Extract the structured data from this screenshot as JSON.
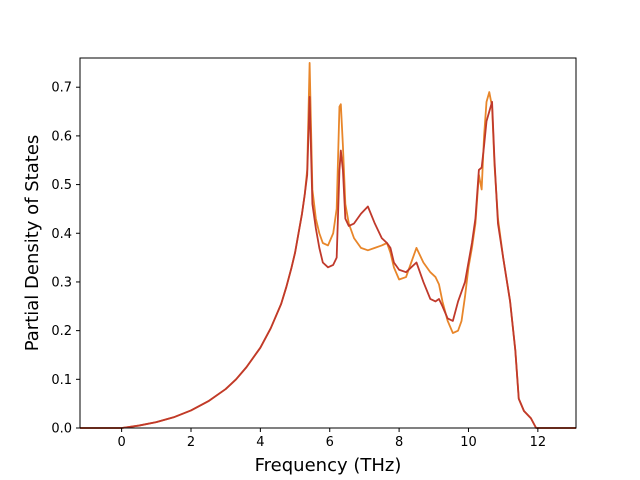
{
  "chart_data": {
    "type": "line",
    "xlabel": "Frequency (THz)",
    "ylabel": "Partial Density of States",
    "xlim": [
      -1.2,
      13.1
    ],
    "ylim": [
      0.0,
      0.76
    ],
    "xticks": [
      "0",
      "2",
      "4",
      "6",
      "8",
      "10",
      "12"
    ],
    "yticks": [
      "0.0",
      "0.1",
      "0.2",
      "0.3",
      "0.4",
      "0.5",
      "0.6",
      "0.7"
    ],
    "grid": false,
    "series": [
      {
        "color": "#e8862a",
        "x": [
          -1.2,
          -0.4,
          0.0,
          0.5,
          1.0,
          1.5,
          2.0,
          2.5,
          3.0,
          3.3,
          3.6,
          4.0,
          4.3,
          4.6,
          4.75,
          4.9,
          5.0,
          5.1,
          5.2,
          5.28,
          5.35,
          5.42,
          5.5,
          5.6,
          5.7,
          5.8,
          5.95,
          6.1,
          6.2,
          6.28,
          6.32,
          6.38,
          6.45,
          6.55,
          6.7,
          6.9,
          7.1,
          7.3,
          7.5,
          7.65,
          7.75,
          7.85,
          8.0,
          8.2,
          8.35,
          8.5,
          8.7,
          8.9,
          9.05,
          9.15,
          9.25,
          9.4,
          9.55,
          9.7,
          9.8,
          9.9,
          10.0,
          10.1,
          10.2,
          10.3,
          10.38,
          10.45,
          10.52,
          10.6,
          10.68,
          10.75,
          10.85,
          11.0,
          11.2,
          11.35,
          11.45,
          11.6,
          11.8,
          11.95,
          12.1,
          12.5,
          13.1
        ],
        "y": [
          0.0,
          0.0,
          0.0,
          0.005,
          0.012,
          0.022,
          0.036,
          0.055,
          0.08,
          0.1,
          0.125,
          0.165,
          0.205,
          0.255,
          0.29,
          0.33,
          0.36,
          0.4,
          0.44,
          0.48,
          0.53,
          0.75,
          0.49,
          0.43,
          0.4,
          0.38,
          0.375,
          0.4,
          0.45,
          0.66,
          0.665,
          0.58,
          0.46,
          0.42,
          0.39,
          0.37,
          0.365,
          0.37,
          0.375,
          0.38,
          0.36,
          0.33,
          0.305,
          0.31,
          0.34,
          0.37,
          0.34,
          0.32,
          0.31,
          0.295,
          0.26,
          0.22,
          0.195,
          0.2,
          0.22,
          0.27,
          0.33,
          0.37,
          0.42,
          0.52,
          0.49,
          0.6,
          0.67,
          0.69,
          0.66,
          0.54,
          0.43,
          0.35,
          0.26,
          0.16,
          0.06,
          0.035,
          0.02,
          0.0,
          0.0,
          0.0,
          0.0
        ]
      },
      {
        "color": "#c0392b",
        "x": [
          -1.2,
          -0.4,
          0.0,
          0.5,
          1.0,
          1.5,
          2.0,
          2.5,
          3.0,
          3.3,
          3.6,
          4.0,
          4.3,
          4.6,
          4.75,
          4.9,
          5.0,
          5.1,
          5.2,
          5.28,
          5.35,
          5.42,
          5.5,
          5.6,
          5.7,
          5.8,
          5.95,
          6.1,
          6.2,
          6.28,
          6.32,
          6.38,
          6.45,
          6.55,
          6.7,
          6.9,
          7.1,
          7.3,
          7.5,
          7.65,
          7.75,
          7.85,
          8.0,
          8.2,
          8.35,
          8.5,
          8.7,
          8.9,
          9.05,
          9.15,
          9.25,
          9.4,
          9.55,
          9.7,
          9.8,
          9.9,
          10.0,
          10.1,
          10.2,
          10.3,
          10.38,
          10.45,
          10.52,
          10.6,
          10.68,
          10.75,
          10.85,
          11.0,
          11.2,
          11.35,
          11.45,
          11.6,
          11.8,
          11.95,
          12.1,
          12.5,
          13.1
        ],
        "y": [
          0.0,
          0.0,
          0.0,
          0.005,
          0.012,
          0.022,
          0.036,
          0.055,
          0.08,
          0.1,
          0.125,
          0.165,
          0.205,
          0.255,
          0.29,
          0.33,
          0.36,
          0.4,
          0.44,
          0.48,
          0.52,
          0.68,
          0.46,
          0.41,
          0.37,
          0.34,
          0.33,
          0.335,
          0.35,
          0.53,
          0.57,
          0.53,
          0.43,
          0.415,
          0.42,
          0.44,
          0.455,
          0.42,
          0.39,
          0.38,
          0.37,
          0.34,
          0.325,
          0.32,
          0.33,
          0.34,
          0.3,
          0.265,
          0.26,
          0.265,
          0.25,
          0.225,
          0.22,
          0.26,
          0.28,
          0.3,
          0.34,
          0.38,
          0.43,
          0.53,
          0.535,
          0.58,
          0.63,
          0.65,
          0.67,
          0.55,
          0.42,
          0.35,
          0.26,
          0.16,
          0.06,
          0.035,
          0.02,
          0.0,
          0.0,
          0.0,
          0.0
        ]
      }
    ]
  }
}
